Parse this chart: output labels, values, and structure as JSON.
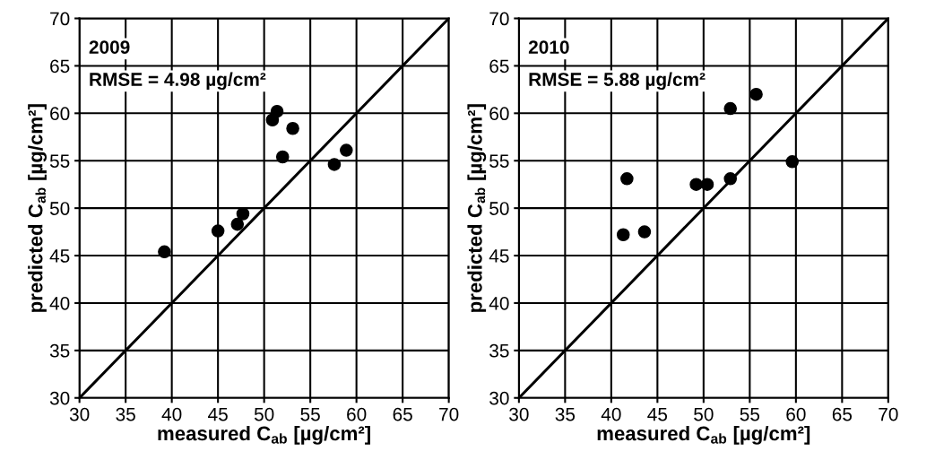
{
  "chart_data": [
    {
      "type": "scatter",
      "xlabel": "measured C$_{ab}$ [µg/cm²]",
      "ylabel": "predicted C$_{ab}$ [µg/cm²]",
      "annotations": [
        "2009",
        "RMSE = 4.98 µg/cm²"
      ],
      "xlim": [
        30,
        70
      ],
      "ylim": [
        30,
        70
      ],
      "xticks": [
        30,
        35,
        40,
        45,
        50,
        55,
        60,
        65,
        70
      ],
      "yticks": [
        30,
        35,
        40,
        45,
        50,
        55,
        60,
        65,
        70
      ],
      "grid": true,
      "series": [
        {
          "marker": "circle",
          "color": "#000000",
          "x": [
            39.2,
            45.0,
            47.1,
            47.7,
            50.9,
            51.4,
            53.1,
            52.0,
            57.6,
            58.9
          ],
          "values": [
            45.4,
            47.6,
            48.3,
            49.4,
            59.3,
            60.2,
            58.4,
            55.4,
            54.6,
            56.1
          ]
        },
        {
          "type": "line",
          "color": "#000000",
          "x": [
            30,
            70
          ],
          "values": [
            30,
            70
          ]
        }
      ]
    },
    {
      "type": "scatter",
      "xlabel": "measured C$_{ab}$ [µg/cm²]",
      "ylabel": "predicted C$_{ab}$ [µg/cm²]",
      "annotations": [
        "2010",
        "RMSE = 5.88 µg/cm²"
      ],
      "xlim": [
        30,
        70
      ],
      "ylim": [
        30,
        70
      ],
      "xticks": [
        30,
        35,
        40,
        45,
        50,
        55,
        60,
        65,
        70
      ],
      "yticks": [
        30,
        35,
        40,
        45,
        50,
        55,
        60,
        65,
        70
      ],
      "grid": true,
      "series": [
        {
          "marker": "circle",
          "color": "#000000",
          "x": [
            41.7,
            41.3,
            43.6,
            49.2,
            50.4,
            52.9,
            52.9,
            55.7,
            59.6
          ],
          "values": [
            53.1,
            47.2,
            47.5,
            52.5,
            52.5,
            60.5,
            53.1,
            62.0,
            54.9
          ]
        },
        {
          "type": "line",
          "color": "#000000",
          "x": [
            30,
            70
          ],
          "values": [
            30,
            70
          ]
        }
      ]
    }
  ]
}
